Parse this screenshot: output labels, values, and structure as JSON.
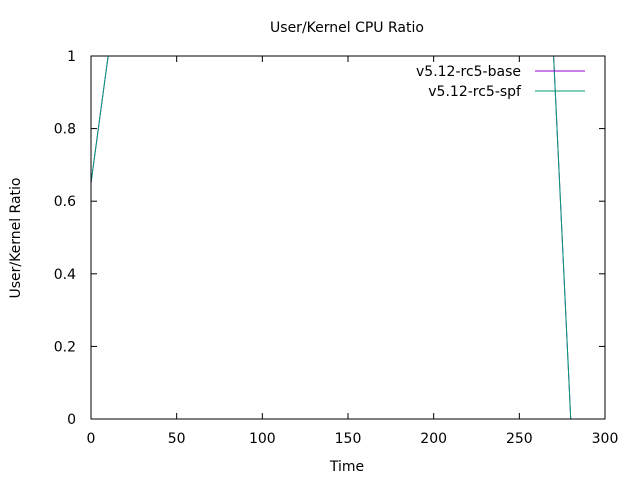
{
  "chart_data": {
    "type": "line",
    "title": "User/Kernel CPU Ratio",
    "xlabel": "Time",
    "ylabel": "User/Kernel Ratio",
    "xlim": [
      0,
      300
    ],
    "ylim": [
      0,
      1
    ],
    "x_ticks": [
      0,
      50,
      100,
      150,
      200,
      250,
      300
    ],
    "y_ticks": [
      0,
      0.2,
      0.4,
      0.6,
      0.8,
      1
    ],
    "x_tick_labels": [
      "0",
      "50",
      "100",
      "150",
      "200",
      "250",
      "300"
    ],
    "y_tick_labels": [
      "0",
      "0.2",
      "0.4",
      "0.6",
      "0.8",
      "1"
    ],
    "grid": false,
    "legend_position": "top-right",
    "series": [
      {
        "name": "v5.12-rc5-base",
        "color": "#9400d3",
        "x": [
          0,
          10,
          270,
          280
        ],
        "y": [
          0.65,
          1.0,
          1.0,
          0.0
        ]
      },
      {
        "name": "v5.12-rc5-spf",
        "color": "#009e73",
        "x": [
          0,
          10,
          270,
          280
        ],
        "y": [
          0.65,
          1.0,
          1.0,
          0.0
        ]
      }
    ]
  }
}
